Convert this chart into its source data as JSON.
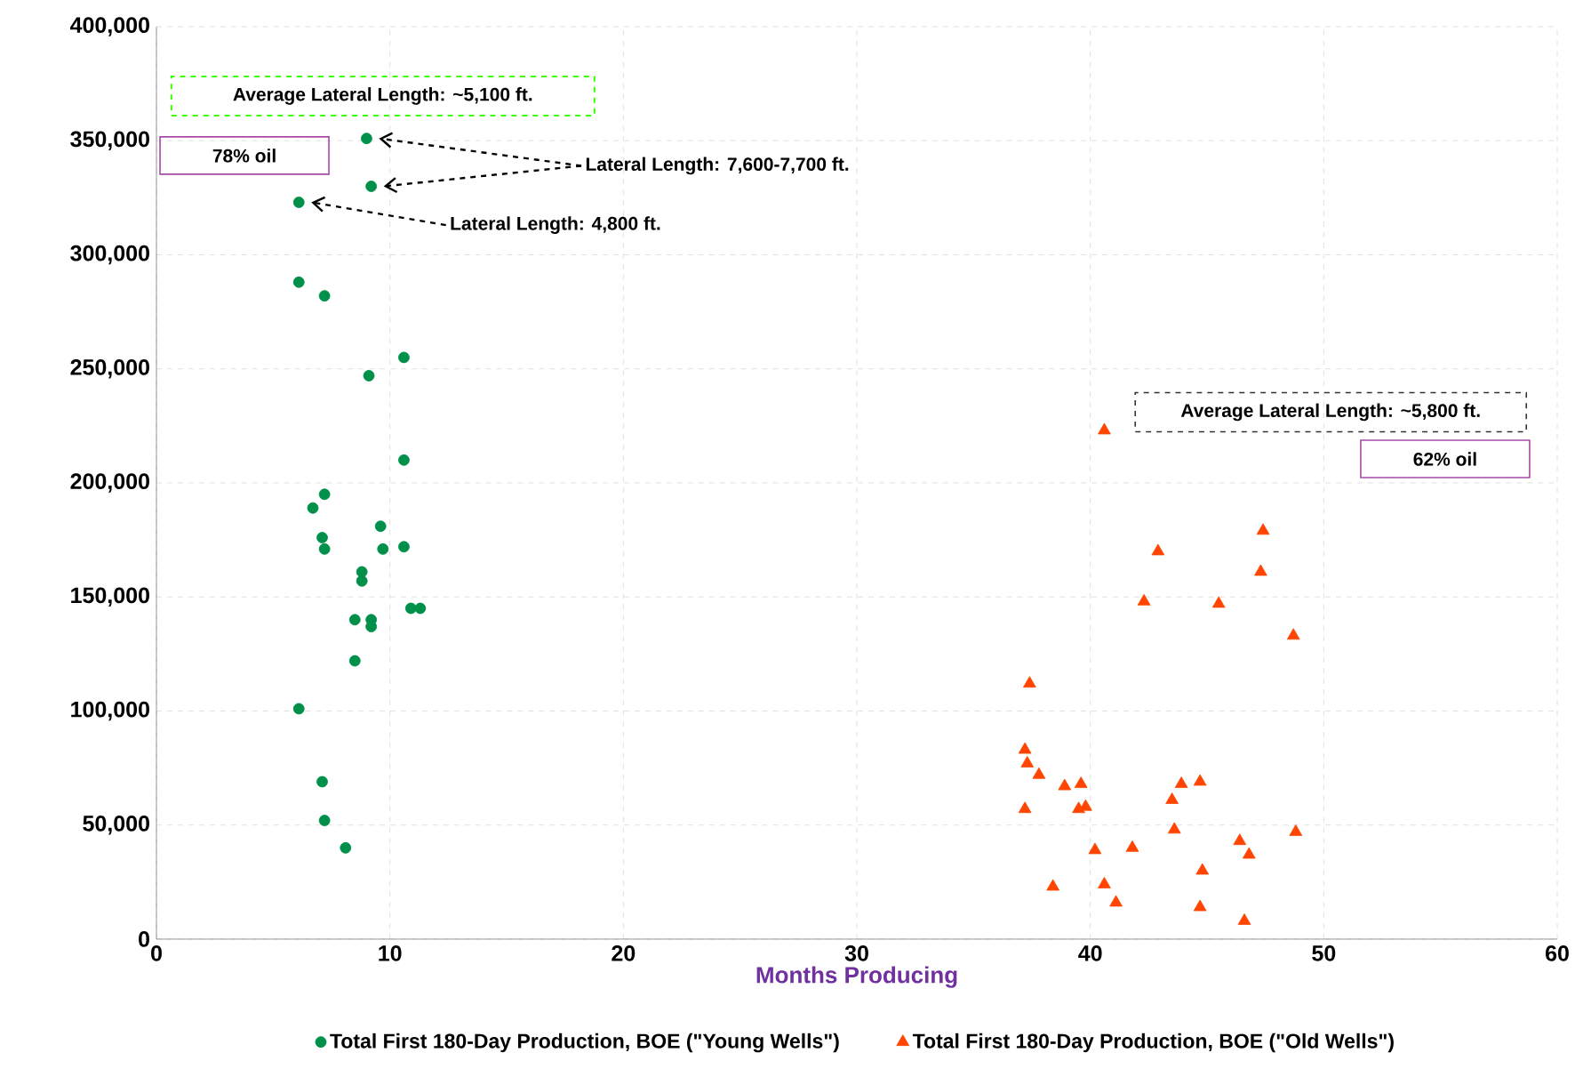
{
  "chart_data": {
    "type": "scatter",
    "xlabel": "Months Producing",
    "xlim": [
      0,
      60
    ],
    "xticks": [
      0,
      10,
      20,
      30,
      40,
      50,
      60
    ],
    "ylim": [
      0,
      400000
    ],
    "yticks": [
      {
        "value": 0,
        "label": "0"
      },
      {
        "value": 50000,
        "label": "50,000"
      },
      {
        "value": 100000,
        "label": "100,000"
      },
      {
        "value": 150000,
        "label": "150,000"
      },
      {
        "value": 200000,
        "label": "200,000"
      },
      {
        "value": 250000,
        "label": "250,000"
      },
      {
        "value": 300000,
        "label": "300,000"
      },
      {
        "value": 350000,
        "label": "350,000"
      },
      {
        "value": 400000,
        "label": "400,000"
      }
    ],
    "grid": true,
    "legend": "bottom",
    "series": [
      {
        "name": "Total First 180-Day Production, BOE (\"Young Wells\")",
        "color": "#00904a",
        "marker": "circle",
        "x": [
          9.0,
          9.2,
          6.1,
          6.1,
          7.2,
          10.6,
          9.1,
          10.6,
          7.2,
          6.7,
          9.6,
          7.1,
          7.2,
          9.7,
          10.6,
          8.8,
          8.8,
          10.9,
          11.3,
          8.5,
          9.2,
          9.2,
          8.5,
          6.1,
          7.1,
          7.2,
          8.1
        ],
        "values": [
          351000,
          330000,
          323000,
          288000,
          282000,
          255000,
          247000,
          210000,
          195000,
          189000,
          181000,
          176000,
          171000,
          171000,
          172000,
          161000,
          157000,
          145000,
          145000,
          140000,
          140000,
          137000,
          122000,
          101000,
          69000,
          52000,
          40000
        ]
      },
      {
        "name": "Total First 180-Day Production, BOE (\"Old Wells\")",
        "color": "#ff4500",
        "marker": "triangle",
        "x": [
          40.6,
          47.4,
          42.9,
          47.3,
          42.3,
          45.5,
          48.7,
          37.4,
          37.2,
          37.3,
          37.8,
          38.9,
          39.6,
          43.9,
          44.7,
          43.5,
          39.5,
          39.8,
          37.2,
          43.6,
          48.8,
          46.4,
          46.8,
          40.2,
          41.8,
          44.8,
          38.4,
          40.6,
          41.1,
          44.7,
          46.6
        ],
        "values": [
          223000,
          179000,
          170000,
          161000,
          148000,
          147000,
          133000,
          112000,
          83000,
          77000,
          72000,
          67000,
          68000,
          68000,
          69000,
          61000,
          57000,
          58000,
          57000,
          48000,
          47000,
          43000,
          37000,
          39000,
          40000,
          30000,
          23000,
          24000,
          16000,
          14000,
          8000
        ]
      }
    ],
    "annotations": [
      "Average Lateral Length: ~5,100 ft.",
      "78% oil",
      {
        "text": "Lateral Length: 7,600-7,700 ft.",
        "x": 9.0,
        "y": 351000
      },
      {
        "text": "Lateral Length: 4,800 ft.",
        "x": 6.1,
        "y": 323000
      },
      "Average Lateral Length: ~5,800 ft.",
      "62% oil"
    ]
  }
}
